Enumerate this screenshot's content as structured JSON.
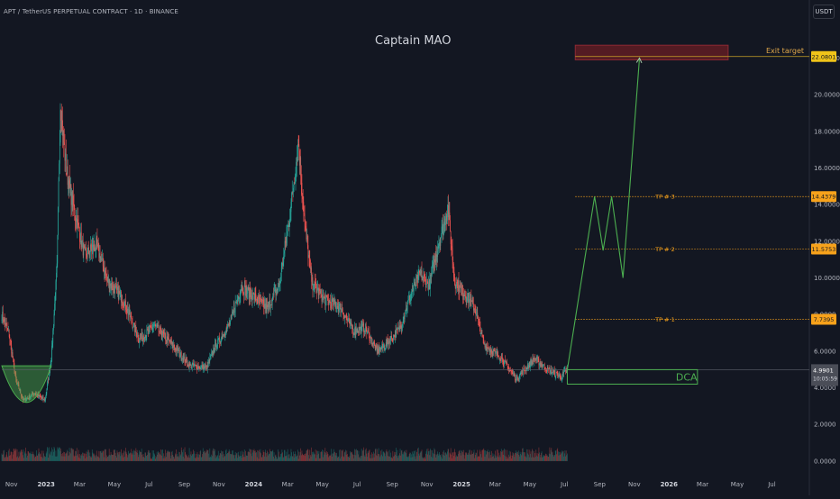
{
  "header": {
    "symbol": "APT / TetherUS PERPETUAL CONTRACT · 1D · BINANCE",
    "currency": "USDT"
  },
  "watermark": "Captain MAO",
  "colors": {
    "background": "#131722",
    "up": "#26a69a",
    "down": "#ef5350",
    "projection": "#4caf50",
    "tp": "#f7a21b",
    "exit_zone": "#6b1d24",
    "exit_line": "#c9a227",
    "axis_text": "#b2b5be"
  },
  "chart_data": {
    "type": "candlestick",
    "price_axis": {
      "ticks": [
        "22.0000",
        "20.0000",
        "18.0000",
        "16.0000",
        "14.0000",
        "12.0000",
        "10.0000",
        "8.0000",
        "6.0000",
        "4.0000",
        "2.0000",
        "0.0000"
      ],
      "range": [
        -0.3,
        23.2
      ]
    },
    "time_axis": {
      "labels": [
        "Nov",
        "2023",
        "Mar",
        "May",
        "Jul",
        "Sep",
        "Nov",
        "2024",
        "Mar",
        "May",
        "Jul",
        "Sep",
        "Nov",
        "2025",
        "Mar",
        "May",
        "Jul",
        "Sep",
        "Nov",
        "2026",
        "Mar",
        "May",
        "Jul"
      ],
      "bold": [
        "2023",
        "2024",
        "2025",
        "2026"
      ],
      "range": [
        "2022-10-15",
        "2026-08-01"
      ]
    },
    "price_anchors": [
      [
        "2022-10-15",
        8.0
      ],
      [
        "2022-10-28",
        6.9
      ],
      [
        "2022-11-09",
        4.4
      ],
      [
        "2022-11-22",
        3.3
      ],
      [
        "2022-12-12",
        3.7
      ],
      [
        "2022-12-30",
        3.3
      ],
      [
        "2023-01-10",
        5.6
      ],
      [
        "2023-01-20",
        10.5
      ],
      [
        "2023-01-26",
        19.5
      ],
      [
        "2023-02-05",
        16.0
      ],
      [
        "2023-02-15",
        14.3
      ],
      [
        "2023-03-10",
        11.2
      ],
      [
        "2023-03-30",
        11.8
      ],
      [
        "2023-04-20",
        9.8
      ],
      [
        "2023-05-15",
        8.9
      ],
      [
        "2023-06-14",
        6.6
      ],
      [
        "2023-07-10",
        7.4
      ],
      [
        "2023-08-15",
        6.2
      ],
      [
        "2023-09-10",
        5.2
      ],
      [
        "2023-10-10",
        5.1
      ],
      [
        "2023-10-25",
        6.2
      ],
      [
        "2023-11-20",
        7.5
      ],
      [
        "2023-12-10",
        9.5
      ],
      [
        "2024-01-05",
        8.9
      ],
      [
        "2024-01-25",
        8.3
      ],
      [
        "2024-02-15",
        9.6
      ],
      [
        "2024-03-05",
        13.5
      ],
      [
        "2024-03-20",
        17.4
      ],
      [
        "2024-04-01",
        12.6
      ],
      [
        "2024-04-13",
        9.7
      ],
      [
        "2024-05-05",
        8.8
      ],
      [
        "2024-06-01",
        8.4
      ],
      [
        "2024-06-25",
        7.1
      ],
      [
        "2024-07-15",
        7.3
      ],
      [
        "2024-08-05",
        6.0
      ],
      [
        "2024-08-20",
        6.3
      ],
      [
        "2024-09-15",
        7.3
      ],
      [
        "2024-10-05",
        9.2
      ],
      [
        "2024-10-20",
        10.2
      ],
      [
        "2024-11-05",
        9.6
      ],
      [
        "2024-11-25",
        12.3
      ],
      [
        "2024-12-08",
        13.8
      ],
      [
        "2024-12-20",
        9.8
      ],
      [
        "2025-01-05",
        9.2
      ],
      [
        "2025-01-25",
        8.3
      ],
      [
        "2025-02-10",
        6.3
      ],
      [
        "2025-03-10",
        5.7
      ],
      [
        "2025-04-07",
        4.5
      ],
      [
        "2025-05-10",
        5.6
      ],
      [
        "2025-06-01",
        5.0
      ],
      [
        "2025-06-25",
        4.6
      ],
      [
        "2025-07-06",
        4.99
      ]
    ],
    "volume_scale": "2.0000",
    "projection_path": [
      [
        "2025-07-06",
        4.99
      ],
      [
        "2025-08-23",
        14.44
      ],
      [
        "2025-09-07",
        11.5
      ],
      [
        "2025-09-22",
        14.44
      ],
      [
        "2025-10-12",
        10.0
      ],
      [
        "2025-11-10",
        22.0
      ]
    ],
    "levels": [
      {
        "name": "exit",
        "label": "Exit target",
        "price": 22.0801,
        "axis_label": "22.0801"
      },
      {
        "name": "tp3",
        "label": "TP # 3",
        "price": 14.4379,
        "axis_label": "14.4379"
      },
      {
        "name": "tp2",
        "label": "TP # 2",
        "price": 11.5753,
        "axis_label": "11.5753"
      },
      {
        "name": "tp1",
        "label": "TP # 1",
        "price": 7.7395,
        "axis_label": "7.7395"
      }
    ],
    "exit_zone": {
      "start": "2025-07-20",
      "end": "2026-04-15",
      "top": 22.7,
      "bottom": 21.9
    },
    "dca_zone": {
      "start": "2025-07-06",
      "end": "2026-02-20",
      "top": 4.99,
      "bottom": 4.2,
      "label": "DCA"
    },
    "cup_zone": {
      "start": "2022-10-15",
      "end": "2023-01-10",
      "top": 5.2,
      "bottom": 3.2
    },
    "current_price": {
      "value": 4.99,
      "axis_label": "4.9901",
      "countdown": "10:05:59"
    }
  }
}
